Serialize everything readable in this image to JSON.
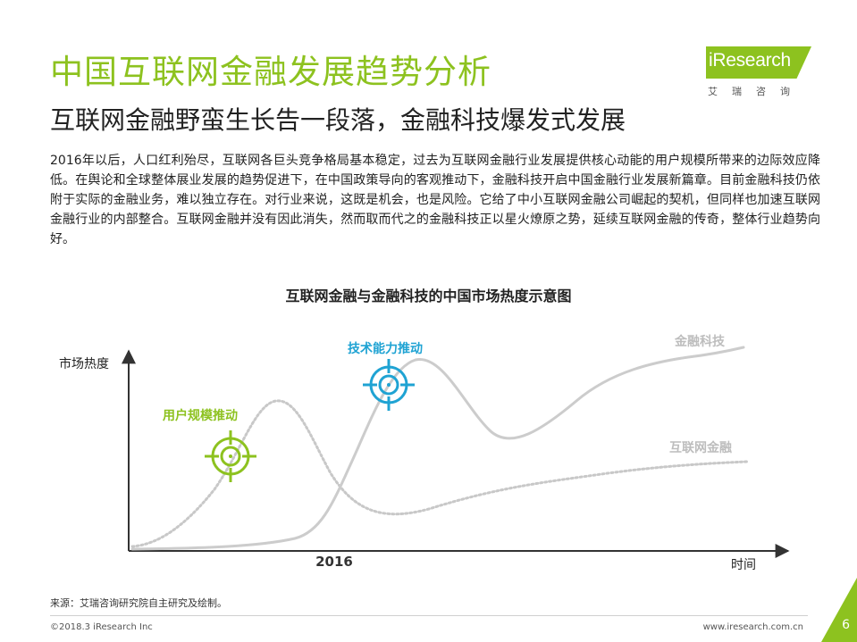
{
  "header": {
    "title": "中国互联网金融发展趋势分析",
    "subtitle": "互联网金融野蛮生长告一段落，金融科技爆发式发展"
  },
  "logo": {
    "word": "iResearch",
    "sub": "艾瑞咨询",
    "icon": "iresearch-logo"
  },
  "body": {
    "paragraph": "2016年以后，人口红利殆尽，互联网各巨头竞争格局基本稳定，过去为互联网金融行业发展提供核心动能的用户规模所带来的边际效应降低。在舆论和全球整体展业发展的趋势促进下，在中国政策导向的客观推动下，金融科技开启中国金融行业发展新篇章。目前金融科技仍依附于实际的金融业务，难以独立存在。对行业来说，这既是机会，也是风险。它给了中小互联网金融公司崛起的契机，但同样也加速互联网金融行业的内部整合。互联网金融并没有因此消失，然而取而代之的金融科技正以星火燎原之势，延续互联网金融的传奇，整体行业趋势向好。"
  },
  "chart_data": {
    "type": "line",
    "title": "互联网金融与金融科技的中国市场热度示意图",
    "ylabel": "市场热度",
    "xlabel": "时间",
    "x_ticks": [
      "2016"
    ],
    "series": [
      {
        "name": "金融科技",
        "style": "solid",
        "color": "#cccccc"
      },
      {
        "name": "互联网金融",
        "style": "dotted",
        "color": "#c8c8c8"
      }
    ],
    "annotations": [
      {
        "label": "用户规模推动",
        "color": "#8dc21f",
        "icon": "target-icon"
      },
      {
        "label": "技术能力推动",
        "color": "#1fa3d3",
        "icon": "target-icon"
      }
    ]
  },
  "footer": {
    "source": "来源：艾瑞咨询研究院自主研究及绘制。",
    "copyright": "©2018.3 iResearch Inc",
    "website": "www.iresearch.com.cn",
    "page_number": "6"
  },
  "colors": {
    "brand_green": "#8dc21f",
    "accent_blue": "#1fa3d3"
  }
}
